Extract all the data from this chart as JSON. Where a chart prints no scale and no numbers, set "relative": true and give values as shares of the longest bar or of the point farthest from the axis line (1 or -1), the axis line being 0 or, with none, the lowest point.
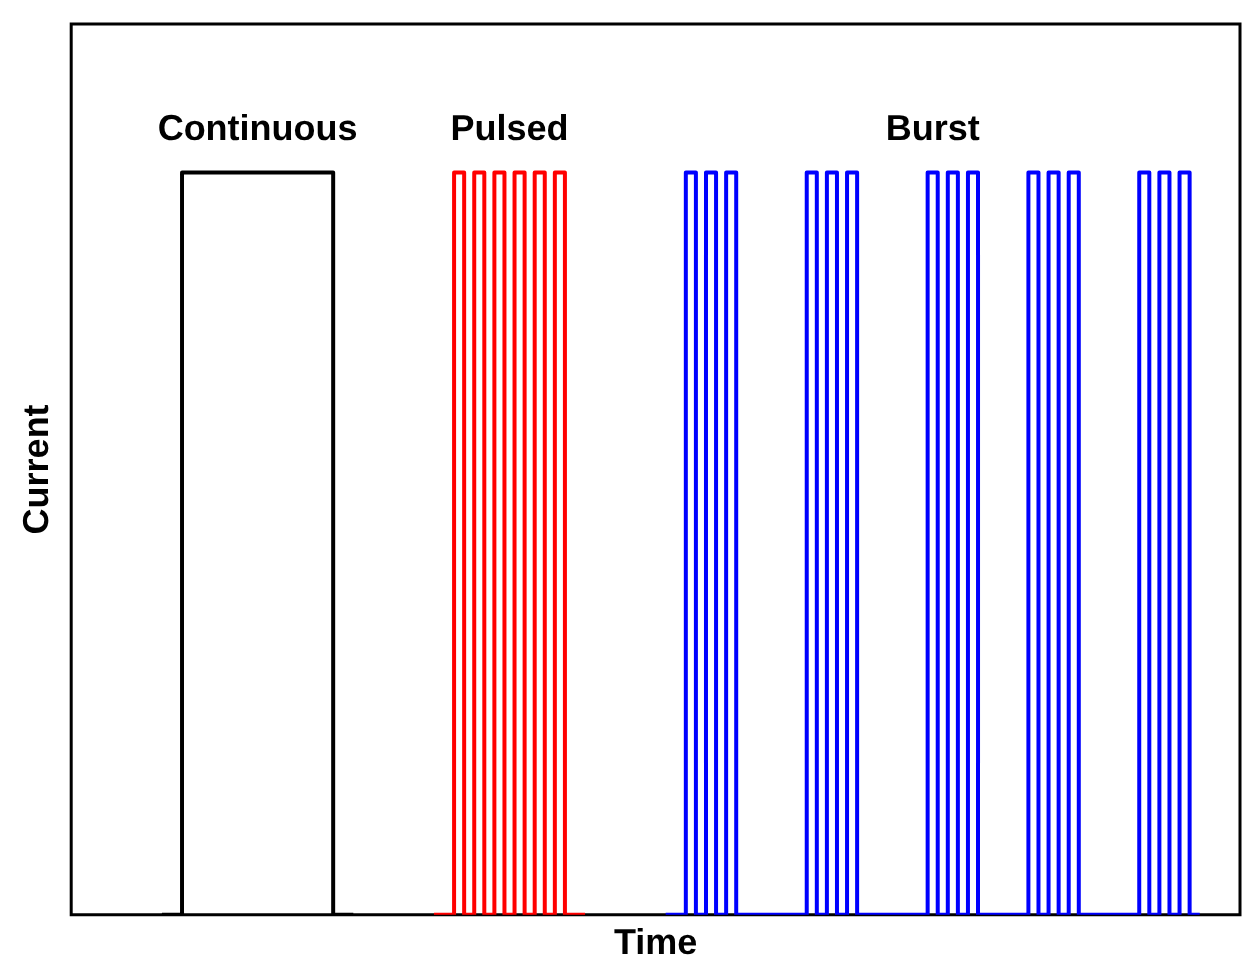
{
  "chart_data": {
    "type": "step",
    "xlabel": "Time",
    "ylabel": "Current",
    "relative": true,
    "legend": false,
    "grid": false,
    "categories": [
      null,
      null,
      null,
      null,
      null,
      null,
      null,
      null,
      null,
      null,
      null,
      null,
      null,
      null,
      null,
      null,
      null,
      null,
      null,
      null,
      null,
      null,
      null,
      null,
      null,
      null,
      null,
      null,
      null,
      null,
      null,
      null,
      null,
      null,
      null,
      null,
      null,
      null,
      null,
      null,
      null,
      null,
      null,
      null,
      null,
      null,
      null,
      null,
      null,
      null,
      null,
      null,
      null,
      null,
      null,
      null,
      null,
      null,
      null,
      null,
      null,
      null,
      null,
      null,
      null,
      null,
      null,
      null,
      null,
      null,
      null,
      null,
      null,
      null,
      null,
      null,
      null,
      null,
      null,
      null,
      null,
      null,
      null,
      null,
      null,
      null,
      null,
      null,
      null,
      null,
      null,
      null,
      null,
      null,
      null,
      null,
      null,
      null,
      null,
      null,
      null,
      null,
      null,
      null,
      null,
      null,
      null,
      null,
      null,
      null,
      null,
      null,
      null,
      null,
      null,
      null,
      null
    ],
    "series": [
      {
        "name": "Continuous",
        "color": "#000000",
        "values": [
          null,
          null,
          null,
          null,
          null,
          null,
          null,
          null,
          null,
          0,
          0,
          1,
          1,
          1,
          1,
          1,
          1,
          1,
          1,
          1,
          1,
          1,
          1,
          1,
          1,
          1,
          0,
          0,
          0,
          null,
          null,
          null,
          null,
          null,
          null,
          null,
          null,
          null,
          null,
          null,
          null,
          null,
          null,
          null,
          null,
          null,
          null,
          null,
          null,
          null,
          null,
          null,
          null,
          null,
          null,
          null,
          null,
          null,
          null,
          null,
          null,
          null,
          null,
          null,
          null,
          null,
          null,
          null,
          null,
          null,
          null,
          null,
          null,
          null,
          null,
          null,
          null,
          null,
          null,
          null,
          null,
          null,
          null,
          null,
          null,
          null,
          null,
          null,
          null,
          null,
          null,
          null,
          null,
          null,
          null,
          null,
          null,
          null,
          null,
          null,
          null,
          null,
          null,
          null,
          null,
          null,
          null,
          null,
          null,
          null,
          null,
          null,
          null,
          null,
          null,
          null,
          null
        ]
      },
      {
        "name": "Pulsed",
        "color": "#ff0000",
        "values": [
          null,
          null,
          null,
          null,
          null,
          null,
          null,
          null,
          null,
          null,
          null,
          null,
          null,
          null,
          null,
          null,
          null,
          null,
          null,
          null,
          null,
          null,
          null,
          null,
          null,
          null,
          null,
          null,
          null,
          null,
          null,
          null,
          null,
          null,
          null,
          null,
          0,
          0,
          1,
          0,
          1,
          0,
          1,
          0,
          1,
          0,
          1,
          0,
          1,
          0,
          0,
          0,
          null,
          null,
          null,
          null,
          null,
          null,
          null,
          null,
          null,
          null,
          null,
          null,
          null,
          null,
          null,
          null,
          null,
          null,
          null,
          null,
          null,
          null,
          null,
          null,
          null,
          null,
          null,
          null,
          null,
          null,
          null,
          null,
          null,
          null,
          null,
          null,
          null,
          null,
          null,
          null,
          null,
          null,
          null,
          null,
          null,
          null,
          null,
          null,
          null,
          null,
          null,
          null,
          null,
          null,
          null,
          null,
          null,
          null,
          null,
          null,
          null,
          null,
          null,
          null,
          null
        ]
      },
      {
        "name": "Burst",
        "color": "#0000ff",
        "values": [
          null,
          null,
          null,
          null,
          null,
          null,
          null,
          null,
          null,
          null,
          null,
          null,
          null,
          null,
          null,
          null,
          null,
          null,
          null,
          null,
          null,
          null,
          null,
          null,
          null,
          null,
          null,
          null,
          null,
          null,
          null,
          null,
          null,
          null,
          null,
          null,
          null,
          null,
          null,
          null,
          null,
          null,
          null,
          null,
          null,
          null,
          null,
          null,
          null,
          null,
          null,
          null,
          null,
          null,
          null,
          null,
          null,
          null,
          null,
          0,
          0,
          1,
          0,
          1,
          0,
          1,
          0,
          0,
          0,
          0,
          0,
          0,
          0,
          1,
          0,
          1,
          0,
          1,
          0,
          0,
          0,
          0,
          0,
          0,
          0,
          1,
          0,
          1,
          0,
          1,
          0,
          0,
          0,
          0,
          0,
          1,
          0,
          1,
          0,
          1,
          0,
          0,
          0,
          0,
          0,
          0,
          1,
          0,
          1,
          0,
          1,
          0,
          0,
          null,
          null,
          null,
          null
        ]
      }
    ]
  }
}
